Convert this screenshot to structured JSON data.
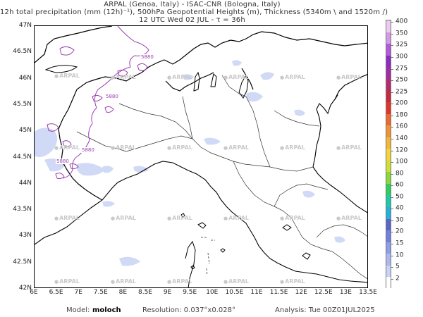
{
  "header": {
    "line1": "ARPAL (Genoa, Italy)  -  ISAC-CNR (Bologna, Italy)",
    "line2": "12h total precipitation (mm (12h)⁻¹), 500hPa Geopotential Heights (m), Thickness (5340m \\ and 1520m /)",
    "line3": "12 UTC Wed 02 JUL   -   τ = 36h"
  },
  "axes": {
    "y_labels": [
      "47N",
      "46.5N",
      "46N",
      "45.5N",
      "45N",
      "44.5N",
      "44N",
      "43.5N",
      "43N",
      "42.5N",
      "42N"
    ],
    "x_labels": [
      "6E",
      "6.5E",
      "7E",
      "7.5E",
      "8E",
      "8.5E",
      "9E",
      "9.5E",
      "10E",
      "10.5E",
      "11E",
      "11.5E",
      "12E",
      "12.5E",
      "13E",
      "13.5E"
    ]
  },
  "contours": {
    "labels": [
      "5880",
      "5880",
      "5880",
      "5880"
    ]
  },
  "watermark": "ARPAL",
  "colorbar": {
    "levels": [
      "2",
      "5",
      "10",
      "15",
      "20",
      "30",
      "40",
      "50",
      "60",
      "80",
      "100",
      "120",
      "140",
      "160",
      "180",
      "200",
      "225",
      "250",
      "275",
      "300",
      "325",
      "350",
      "400"
    ],
    "colors": [
      "#ffffff",
      "#c8d3f5",
      "#aab8ee",
      "#8d9ee6",
      "#7180de",
      "#5a66c8",
      "#27b0d6",
      "#21c9a8",
      "#2fcf5d",
      "#8ad83a",
      "#cfe035",
      "#f3d43a",
      "#f2b737",
      "#ee9435",
      "#ea6a30",
      "#e1352c",
      "#c62a3e",
      "#b52b70",
      "#a02da2",
      "#8a2dc0",
      "#b25ad8",
      "#d59ae6",
      "#eccaf1"
    ]
  },
  "footer": {
    "model_label": "Model:",
    "model_value": "moloch",
    "resolution": "Resolution: 0.037°x0.028°",
    "analysis": "Analysis: Tue 00Z01JUL2025"
  }
}
